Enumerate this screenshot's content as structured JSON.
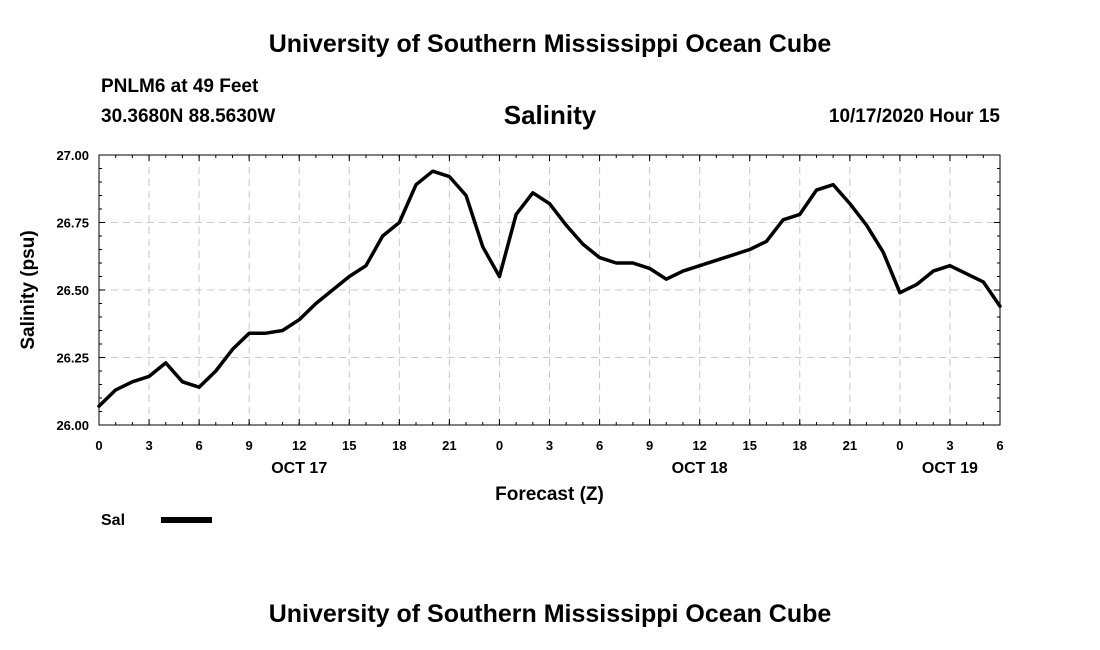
{
  "header": {
    "title": "University of Southern Mississippi Ocean Cube",
    "station": "PNLM6 at 49 Feet",
    "coordinates": "30.3680N 88.5630W",
    "datetime": "10/17/2020 Hour 15"
  },
  "footer": {
    "title": "University of Southern Mississippi Ocean Cube"
  },
  "chart_data": {
    "type": "line",
    "title": "Salinity",
    "xlabel": "Forecast (Z)",
    "ylabel": "Salinity (psu)",
    "ylim": [
      26.0,
      27.0
    ],
    "xlim": [
      0,
      54
    ],
    "grid": true,
    "y_ticks": [
      "26.00",
      "26.25",
      "26.50",
      "26.75",
      "27.00"
    ],
    "y_tick_values": [
      26.0,
      26.25,
      26.5,
      26.75,
      27.0
    ],
    "x_tick_values": [
      0,
      3,
      6,
      9,
      12,
      15,
      18,
      21,
      24,
      27,
      30,
      33,
      36,
      39,
      42,
      45,
      48,
      51,
      54
    ],
    "x_tick_labels": [
      "0",
      "3",
      "6",
      "9",
      "12",
      "15",
      "18",
      "21",
      "0",
      "3",
      "6",
      "9",
      "12",
      "15",
      "18",
      "21",
      "0",
      "3",
      "6"
    ],
    "day_labels": [
      {
        "label": "OCT 17",
        "x": 12
      },
      {
        "label": "OCT 18",
        "x": 36
      },
      {
        "label": "OCT 19",
        "x": 51
      }
    ],
    "legend": {
      "position": "bottom-left",
      "entries": [
        "Sal"
      ]
    },
    "series": [
      {
        "name": "Sal",
        "color": "#000000",
        "x": [
          0,
          1,
          2,
          3,
          4,
          5,
          6,
          7,
          8,
          9,
          10,
          11,
          12,
          13,
          14,
          15,
          16,
          17,
          18,
          19,
          20,
          21,
          22,
          23,
          24,
          25,
          26,
          27,
          28,
          29,
          30,
          31,
          32,
          33,
          34,
          35,
          36,
          37,
          38,
          39,
          40,
          41,
          42,
          43,
          44,
          45,
          46,
          47,
          48,
          49,
          50,
          51,
          52,
          53,
          54
        ],
        "values": [
          26.07,
          26.13,
          26.16,
          26.18,
          26.23,
          26.16,
          26.14,
          26.2,
          26.28,
          26.34,
          26.34,
          26.35,
          26.39,
          26.45,
          26.5,
          26.55,
          26.59,
          26.7,
          26.75,
          26.89,
          26.94,
          26.92,
          26.85,
          26.66,
          26.55,
          26.78,
          26.86,
          26.82,
          26.74,
          26.67,
          26.62,
          26.6,
          26.6,
          26.58,
          26.54,
          26.57,
          26.59,
          26.61,
          26.63,
          26.65,
          26.68,
          26.76,
          26.78,
          26.87,
          26.89,
          26.82,
          26.74,
          26.64,
          26.49,
          26.52,
          26.57,
          26.59,
          26.56,
          26.53,
          26.44
        ]
      }
    ]
  }
}
